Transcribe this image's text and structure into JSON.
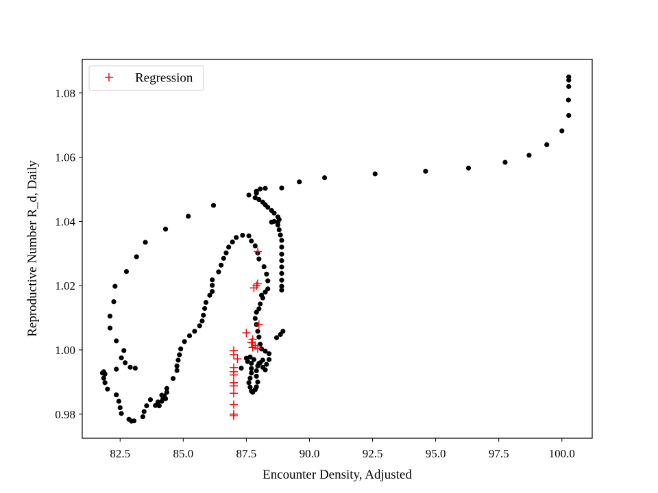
{
  "chart_data": {
    "type": "scatter",
    "title": "",
    "xlabel": "Encounter Density, Adjusted",
    "ylabel": "Reproductive Number R_d, Daily",
    "xlim": [
      81.0,
      101.2
    ],
    "ylim": [
      0.9725,
      1.0905
    ],
    "xticks": [
      82.5,
      85.0,
      87.5,
      90.0,
      92.5,
      95.0,
      97.5,
      100.0
    ],
    "xtick_labels": [
      "82.5",
      "85.0",
      "87.5",
      "90.0",
      "92.5",
      "95.0",
      "97.5",
      "100.0"
    ],
    "yticks": [
      0.98,
      1.0,
      1.02,
      1.04,
      1.06,
      1.08
    ],
    "ytick_labels": [
      "0.98",
      "1.00",
      "1.02",
      "1.04",
      "1.06",
      "1.08"
    ],
    "grid": false,
    "legend": {
      "position": "top-left"
    },
    "colors": {
      "observed": "#000000",
      "regression": "#ff0000"
    },
    "series": [
      {
        "marker": "dot",
        "color": "#000000",
        "points": [
          [
            100.27,
            1.085
          ],
          [
            100.27,
            1.084
          ],
          [
            100.27,
            1.082
          ],
          [
            100.26,
            1.0778
          ],
          [
            100.27,
            1.073
          ],
          [
            100.0,
            1.0682
          ],
          [
            99.4,
            1.0639
          ],
          [
            98.7,
            1.0606
          ],
          [
            97.75,
            1.0584
          ],
          [
            96.3,
            1.0566
          ],
          [
            94.6,
            1.0556
          ],
          [
            92.6,
            1.0548
          ],
          [
            90.6,
            1.0536
          ],
          [
            89.6,
            1.0523
          ],
          [
            88.9,
            1.0504
          ],
          [
            88.25,
            1.0503
          ],
          [
            88.05,
            1.0501
          ],
          [
            87.9,
            1.0494
          ],
          [
            87.9,
            1.0488
          ],
          [
            87.6,
            1.0482
          ],
          [
            87.85,
            1.0474
          ],
          [
            88.0,
            1.0468
          ],
          [
            88.15,
            1.046
          ],
          [
            88.25,
            1.0452
          ],
          [
            88.35,
            1.0444
          ],
          [
            88.5,
            1.0434
          ],
          [
            88.6,
            1.0426
          ],
          [
            88.75,
            1.0414
          ],
          [
            88.8,
            1.0406
          ],
          [
            88.75,
            1.0398
          ],
          [
            88.6,
            1.04
          ],
          [
            88.5,
            1.0398
          ],
          [
            88.75,
            1.0389
          ],
          [
            88.8,
            1.0374
          ],
          [
            88.85,
            1.0358
          ],
          [
            88.9,
            1.0341
          ],
          [
            88.9,
            1.032
          ],
          [
            88.9,
            1.0298
          ],
          [
            88.9,
            1.0278
          ],
          [
            88.9,
            1.0258
          ],
          [
            88.9,
            1.0238
          ],
          [
            88.9,
            1.0217
          ],
          [
            88.9,
            1.0198
          ],
          [
            88.9,
            1.0186
          ],
          [
            88.35,
            1.019
          ],
          [
            88.35,
            1.0215
          ],
          [
            88.3,
            1.0236
          ],
          [
            88.2,
            1.0259
          ],
          [
            88.0,
            1.0283
          ],
          [
            87.95,
            1.0302
          ],
          [
            87.85,
            1.0324
          ],
          [
            87.7,
            1.0339
          ],
          [
            87.6,
            1.0355
          ],
          [
            87.35,
            1.0357
          ],
          [
            87.1,
            1.035
          ],
          [
            86.95,
            1.0336
          ],
          [
            86.8,
            1.032
          ],
          [
            86.7,
            1.0302
          ],
          [
            86.6,
            1.0285
          ],
          [
            86.5,
            1.0264
          ],
          [
            86.4,
            1.0243
          ],
          [
            86.15,
            1.0218
          ],
          [
            86.15,
            1.0201
          ],
          [
            86.15,
            1.0182
          ],
          [
            86.05,
            1.017
          ],
          [
            85.9,
            1.0148
          ],
          [
            85.85,
            1.0129
          ],
          [
            85.8,
            1.0108
          ],
          [
            85.75,
            1.009
          ],
          [
            85.65,
            1.0075
          ],
          [
            85.45,
            1.0058
          ],
          [
            85.25,
            1.0044
          ],
          [
            85.05,
            1.0026
          ],
          [
            84.9,
            1.0003
          ],
          [
            84.85,
            0.9985
          ],
          [
            84.8,
            0.9968
          ],
          [
            84.75,
            0.995
          ],
          [
            84.75,
            0.9936
          ],
          [
            84.6,
            0.9911
          ],
          [
            84.35,
            0.988
          ],
          [
            84.15,
            0.9859
          ],
          [
            84.3,
            0.9848
          ],
          [
            84.15,
            0.984
          ],
          [
            84.0,
            0.9838
          ],
          [
            83.9,
            0.9827
          ],
          [
            84.05,
            0.9826
          ],
          [
            84.2,
            0.985
          ],
          [
            84.35,
            0.9868
          ],
          [
            84.25,
            0.9857
          ],
          [
            83.7,
            0.9845
          ],
          [
            83.55,
            0.9826
          ],
          [
            83.45,
            0.9808
          ],
          [
            83.4,
            0.9792
          ],
          [
            83.05,
            0.9779
          ],
          [
            82.95,
            0.9778
          ],
          [
            82.85,
            0.9784
          ],
          [
            82.55,
            0.9802
          ],
          [
            82.5,
            0.982
          ],
          [
            82.45,
            0.984
          ],
          [
            82.35,
            0.986
          ],
          [
            82.0,
            0.9878
          ],
          [
            81.9,
            0.9898
          ],
          [
            81.85,
            0.9912
          ],
          [
            81.9,
            0.9925
          ],
          [
            81.85,
            0.9932
          ],
          [
            81.8,
            0.9928
          ],
          [
            82.35,
            0.994
          ],
          [
            82.55,
            0.9975
          ],
          [
            82.65,
            0.9998
          ],
          [
            82.35,
            1.0028
          ],
          [
            82.1,
            1.0068
          ],
          [
            82.1,
            1.0105
          ],
          [
            82.25,
            1.015
          ],
          [
            82.3,
            1.0198
          ],
          [
            82.75,
            1.0244
          ],
          [
            83.15,
            1.029
          ],
          [
            83.5,
            1.0335
          ],
          [
            84.3,
            1.0376
          ],
          [
            85.2,
            1.0416
          ],
          [
            86.2,
            1.045
          ],
          [
            82.7,
            0.996
          ],
          [
            82.9,
            0.9946
          ],
          [
            83.1,
            0.9943
          ],
          [
            87.5,
            0.9974
          ],
          [
            87.55,
            0.9964
          ],
          [
            87.65,
            0.9978
          ],
          [
            87.8,
            0.997
          ],
          [
            88.0,
            0.9958
          ],
          [
            88.15,
            0.9946
          ],
          [
            88.25,
            0.9938
          ],
          [
            88.3,
            0.9955
          ],
          [
            88.4,
            0.997
          ],
          [
            88.4,
            0.9988
          ],
          [
            88.25,
            0.9996
          ],
          [
            88.1,
            1.0003
          ],
          [
            88.05,
            1.0018
          ],
          [
            88.0,
            1.004
          ],
          [
            87.95,
            1.0058
          ],
          [
            87.9,
            1.0079
          ],
          [
            87.85,
            1.0098
          ],
          [
            87.9,
            1.0117
          ],
          [
            88.0,
            1.0128
          ],
          [
            88.05,
            1.0143
          ],
          [
            88.15,
            1.0162
          ],
          [
            88.25,
            1.018
          ],
          [
            88.1,
            1.017
          ],
          [
            87.7,
            0.9958
          ],
          [
            87.7,
            0.9942
          ],
          [
            87.7,
            0.9928
          ],
          [
            87.65,
            0.9912
          ],
          [
            87.6,
            0.9898
          ],
          [
            87.65,
            0.9884
          ],
          [
            87.7,
            0.9872
          ],
          [
            87.75,
            0.9868
          ],
          [
            87.85,
            0.9876
          ],
          [
            87.9,
            0.9885
          ],
          [
            87.95,
            0.99
          ],
          [
            87.9,
            0.9918
          ],
          [
            87.9,
            0.9935
          ],
          [
            87.95,
            0.995
          ],
          [
            88.05,
            0.996
          ],
          [
            88.15,
            0.9968
          ],
          [
            87.3,
            0.9943
          ],
          [
            88.7,
            1.0038
          ],
          [
            88.85,
            1.0048
          ],
          [
            88.95,
            1.0058
          ]
        ]
      },
      {
        "name": "Regression",
        "marker": "plus",
        "color": "#ff0000",
        "points": [
          [
            87.0,
            0.9795
          ],
          [
            87.0,
            0.98
          ],
          [
            87.0,
            0.983
          ],
          [
            87.0,
            0.9865
          ],
          [
            87.0,
            0.9888
          ],
          [
            87.0,
            0.9898
          ],
          [
            87.0,
            0.9922
          ],
          [
            87.0,
            0.9932
          ],
          [
            87.0,
            0.9945
          ],
          [
            87.0,
            0.9985
          ],
          [
            87.0,
            0.9998
          ],
          [
            87.15,
            0.9972
          ],
          [
            87.5,
            1.0053
          ],
          [
            87.75,
            1.0033
          ],
          [
            87.7,
            1.0023
          ],
          [
            87.75,
            1.0008
          ],
          [
            87.85,
            1.0014
          ],
          [
            87.95,
            1.0004
          ],
          [
            88.0,
            1.0079
          ],
          [
            87.8,
            1.0193
          ],
          [
            87.9,
            1.02
          ],
          [
            87.95,
            1.0206
          ],
          [
            87.95,
            1.0306
          ]
        ]
      }
    ]
  },
  "legend": {
    "label": "Regression"
  }
}
